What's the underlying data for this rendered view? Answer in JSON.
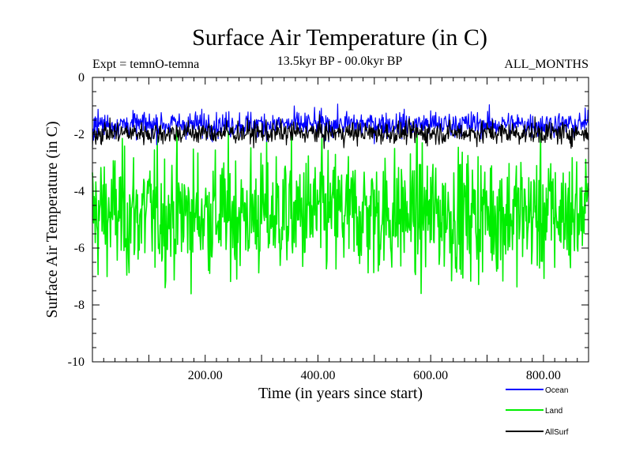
{
  "chart_data": {
    "type": "line",
    "title": "Surface Air Temperature (in C)",
    "subtitle": "13.5kyr BP - 00.0kyr BP",
    "left_label": "Expt = temnO-temna",
    "right_label": "ALL_MONTHS",
    "xlabel": "Time (in years since start)",
    "ylabel": "Surface Air Temperature (in C)",
    "xlim": [
      0,
      880
    ],
    "ylim": [
      -10,
      0
    ],
    "x_ticks": [
      200,
      400,
      600,
      800
    ],
    "x_tick_labels": [
      "200.00",
      "400.00",
      "600.00",
      "800.00"
    ],
    "y_ticks": [
      0,
      -2,
      -4,
      -6,
      -8,
      -10
    ],
    "y_tick_labels": [
      "0",
      "-2",
      "-4",
      "-6",
      "-8",
      "-10"
    ],
    "legend_position": "bottom-right, below plot",
    "series": [
      {
        "name": "Ocean",
        "color": "#0000ff",
        "mean": -1.65,
        "min_approx": -2.6,
        "max_approx": -0.8,
        "description": "high-frequency noise band"
      },
      {
        "name": "Land",
        "color": "#00ee00",
        "mean": -4.8,
        "min_approx": -8.2,
        "max_approx": -1.9,
        "description": "high-frequency noise band"
      },
      {
        "name": "AllSurf",
        "color": "#000000",
        "mean": -1.95,
        "min_approx": -2.9,
        "max_approx": -1.2,
        "description": "high-frequency noise band"
      }
    ]
  }
}
